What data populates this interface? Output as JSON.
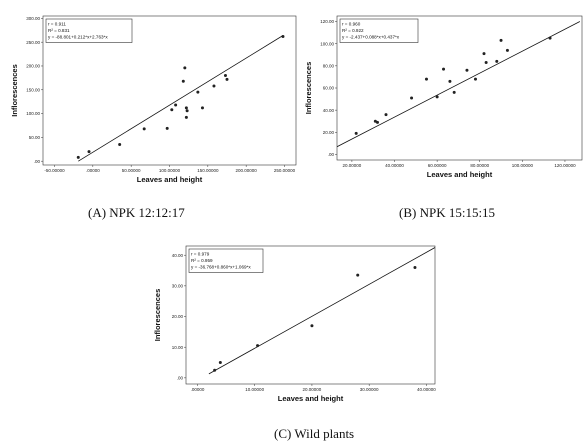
{
  "chart_data": [
    {
      "type": "scatter",
      "caption": "(A) NPK 12:12:17",
      "xlabel": "Leaves and height",
      "ylabel": "Inflorescences",
      "xlim": [
        -65,
        265
      ],
      "ylim": [
        -8,
        305
      ],
      "x_ticks": [
        -50,
        0,
        50,
        100,
        150,
        200,
        250
      ],
      "x_tick_labels": [
        "-50.00000",
        ".00000",
        "50.00000",
        "100.00000",
        "150.00000",
        "200.00000",
        "250.00000"
      ],
      "y_ticks": [
        0,
        50,
        100,
        150,
        200,
        250,
        300
      ],
      "y_tick_labels": [
        ".00",
        "50.00",
        "100.00",
        "150.00",
        "200.00",
        "250.00",
        "300.00"
      ],
      "stats": [
        "r = 0.911",
        "R² = 0.831",
        "y = -88.801+0.212*x+2.763*x"
      ],
      "fit": [
        [
          -19,
          0
        ],
        [
          248,
          264
        ]
      ],
      "points": [
        [
          -19,
          8
        ],
        [
          -5,
          20
        ],
        [
          35,
          35
        ],
        [
          67,
          68
        ],
        [
          97,
          69
        ],
        [
          103,
          108
        ],
        [
          108,
          118
        ],
        [
          118,
          168
        ],
        [
          120,
          196
        ],
        [
          122,
          112
        ],
        [
          122,
          92
        ],
        [
          123,
          106
        ],
        [
          137,
          145
        ],
        [
          143,
          112
        ],
        [
          158,
          158
        ],
        [
          173,
          180
        ],
        [
          175,
          172
        ],
        [
          248,
          262
        ]
      ]
    },
    {
      "type": "scatter",
      "caption": "(B) NPK 15:15:15",
      "xlabel": "Leaves and height",
      "ylabel": "Inflorescences",
      "xlim": [
        13,
        128
      ],
      "ylim": [
        -5,
        125
      ],
      "x_ticks": [
        20,
        40,
        60,
        80,
        100,
        120
      ],
      "x_tick_labels": [
        "20.00000",
        "40.00000",
        "60.00000",
        "80.00000",
        "100.00000",
        "120.00000"
      ],
      "y_ticks": [
        0,
        20,
        40,
        60,
        80,
        100,
        120
      ],
      "y_tick_labels": [
        ".00",
        "20.00",
        "40.00",
        "60.00",
        "80.00",
        "100.00",
        "120.00"
      ],
      "stats": [
        "r = 0.960",
        "R² = 0.922",
        "y = -2.437+0.088*x+0.437*x"
      ],
      "fit": [
        [
          13,
          7
        ],
        [
          127,
          120
        ]
      ],
      "points": [
        [
          22,
          19
        ],
        [
          31,
          30
        ],
        [
          32,
          29
        ],
        [
          36,
          36
        ],
        [
          48,
          51
        ],
        [
          55,
          68
        ],
        [
          60,
          52
        ],
        [
          63,
          77
        ],
        [
          66,
          66
        ],
        [
          68,
          56
        ],
        [
          74,
          76
        ],
        [
          78,
          68
        ],
        [
          82,
          91
        ],
        [
          83,
          83
        ],
        [
          88,
          84
        ],
        [
          90,
          103
        ],
        [
          93,
          94
        ],
        [
          113,
          105
        ]
      ]
    },
    {
      "type": "scatter",
      "caption": "(C) Wild plants",
      "xlabel": "Leaves and height",
      "ylabel": "Inflorescences",
      "xlim": [
        -2,
        41.5
      ],
      "ylim": [
        -2,
        43
      ],
      "x_ticks": [
        0,
        10,
        20,
        30,
        40
      ],
      "x_tick_labels": [
        ".00000",
        "10.00000",
        "20.00000",
        "30.00000",
        "40.00000"
      ],
      "y_ticks": [
        0,
        10,
        20,
        30,
        40
      ],
      "y_tick_labels": [
        ".00",
        "10.00",
        "20.00",
        "30.00",
        "40.00"
      ],
      "stats": [
        "r = 0.979",
        "R² = 0.959",
        "y = -36.768+0.860*x+1.069*x"
      ],
      "fit": [
        [
          2,
          1.3
        ],
        [
          41.5,
          42.5
        ]
      ],
      "points": [
        [
          3,
          2.5
        ],
        [
          4,
          5
        ],
        [
          10.5,
          10.5
        ],
        [
          20,
          17
        ],
        [
          28,
          33.5
        ],
        [
          38,
          36
        ]
      ]
    }
  ]
}
